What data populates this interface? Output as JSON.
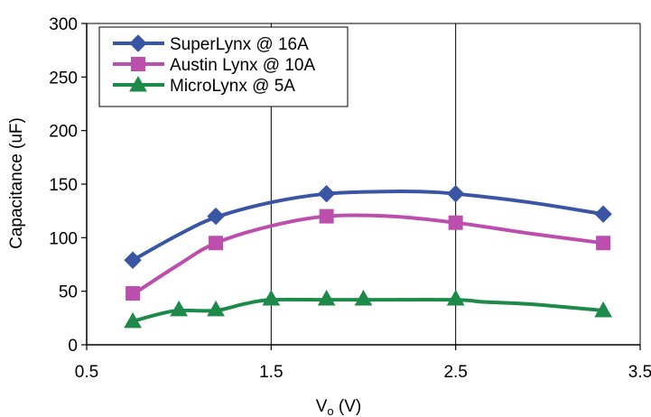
{
  "chart_data": {
    "type": "line",
    "title": "",
    "xlabel": "V",
    "xlabel_sub": "o",
    "xlabel_unit": " (V)",
    "ylabel": "Capacitance (uF)",
    "xlim": [
      0.5,
      3.5
    ],
    "ylim": [
      0,
      300
    ],
    "xticks": [
      0.5,
      1.5,
      2.5,
      3.5
    ],
    "xtick_labels": [
      "0.5",
      "1.5",
      "2.5",
      "3.5"
    ],
    "yticks": [
      0,
      50,
      100,
      150,
      200,
      250,
      300
    ],
    "ytick_labels": [
      "0",
      "50",
      "100",
      "150",
      "200",
      "250",
      "300"
    ],
    "grid": "vertical",
    "legend_position": "top-left",
    "series": [
      {
        "name": "SuperLynx @ 16A",
        "color": "#3a55a4",
        "marker": "diamond",
        "curve_x": [
          0.75,
          1.0,
          1.2,
          1.5,
          1.8,
          2.1,
          2.3,
          2.5,
          2.9,
          3.3
        ],
        "curve_y": [
          79,
          103,
          119,
          133,
          141,
          143,
          143,
          141,
          133,
          122
        ],
        "marker_x": [
          0.75,
          1.2,
          1.8,
          2.5,
          3.3
        ],
        "marker_y": [
          79,
          120,
          141,
          141,
          122
        ]
      },
      {
        "name": "Austin Lynx @ 10A",
        "color": "#bc4fad",
        "marker": "square",
        "curve_x": [
          0.75,
          1.0,
          1.2,
          1.5,
          1.8,
          2.15,
          2.5,
          2.9,
          3.3
        ],
        "curve_y": [
          47,
          75,
          95,
          111,
          120,
          120,
          114,
          104,
          95
        ],
        "marker_x": [
          0.75,
          1.2,
          1.8,
          2.5,
          3.3
        ],
        "marker_y": [
          48,
          95,
          120,
          114,
          95
        ]
      },
      {
        "name": "MicroLynx @ 5A",
        "color": "#1e8a4a",
        "marker": "triangle",
        "curve_x": [
          0.75,
          0.9,
          1.0,
          1.2,
          1.35,
          1.5,
          1.8,
          2.0,
          2.5,
          2.65,
          2.9,
          3.3
        ],
        "curve_y": [
          22,
          29,
          32,
          32,
          38,
          42,
          42,
          42,
          42,
          40,
          38,
          32
        ],
        "marker_x": [
          0.75,
          1.0,
          1.2,
          1.5,
          1.8,
          2.0,
          2.5,
          3.3
        ],
        "marker_y": [
          22,
          33,
          33,
          43,
          43,
          43,
          43,
          32
        ]
      }
    ]
  }
}
